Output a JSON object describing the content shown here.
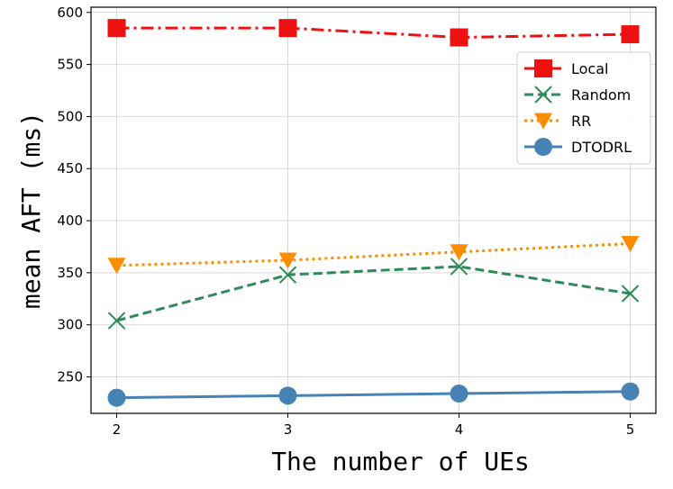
{
  "chart_data": {
    "type": "line",
    "title": "",
    "xlabel": "The number of UEs",
    "ylabel": "mean AFT (ms)",
    "x": [
      2,
      3,
      4,
      5
    ],
    "x_ticks": [
      "2",
      "3",
      "4",
      "5"
    ],
    "xlim": [
      1.85,
      5.15
    ],
    "ylim": [
      215,
      605
    ],
    "y_ticks": [
      250,
      300,
      350,
      400,
      450,
      500,
      550,
      600
    ],
    "grid": true,
    "legend_position": "top-right",
    "series": [
      {
        "name": "Local",
        "values": [
          585,
          585,
          576,
          579
        ],
        "color": "#ee1111",
        "marker": "square",
        "linestyle": "dashdot"
      },
      {
        "name": "Random",
        "values": [
          304,
          348,
          356,
          330
        ],
        "color": "#2e8b57",
        "marker": "x",
        "linestyle": "dashed"
      },
      {
        "name": "RR",
        "values": [
          357,
          362,
          370,
          378
        ],
        "color": "#ff8c00",
        "marker": "triangle-down",
        "linestyle": "dotted"
      },
      {
        "name": "DTODRL",
        "values": [
          230,
          232,
          234,
          236
        ],
        "color": "#4682b4",
        "marker": "circle",
        "linestyle": "solid"
      }
    ]
  }
}
